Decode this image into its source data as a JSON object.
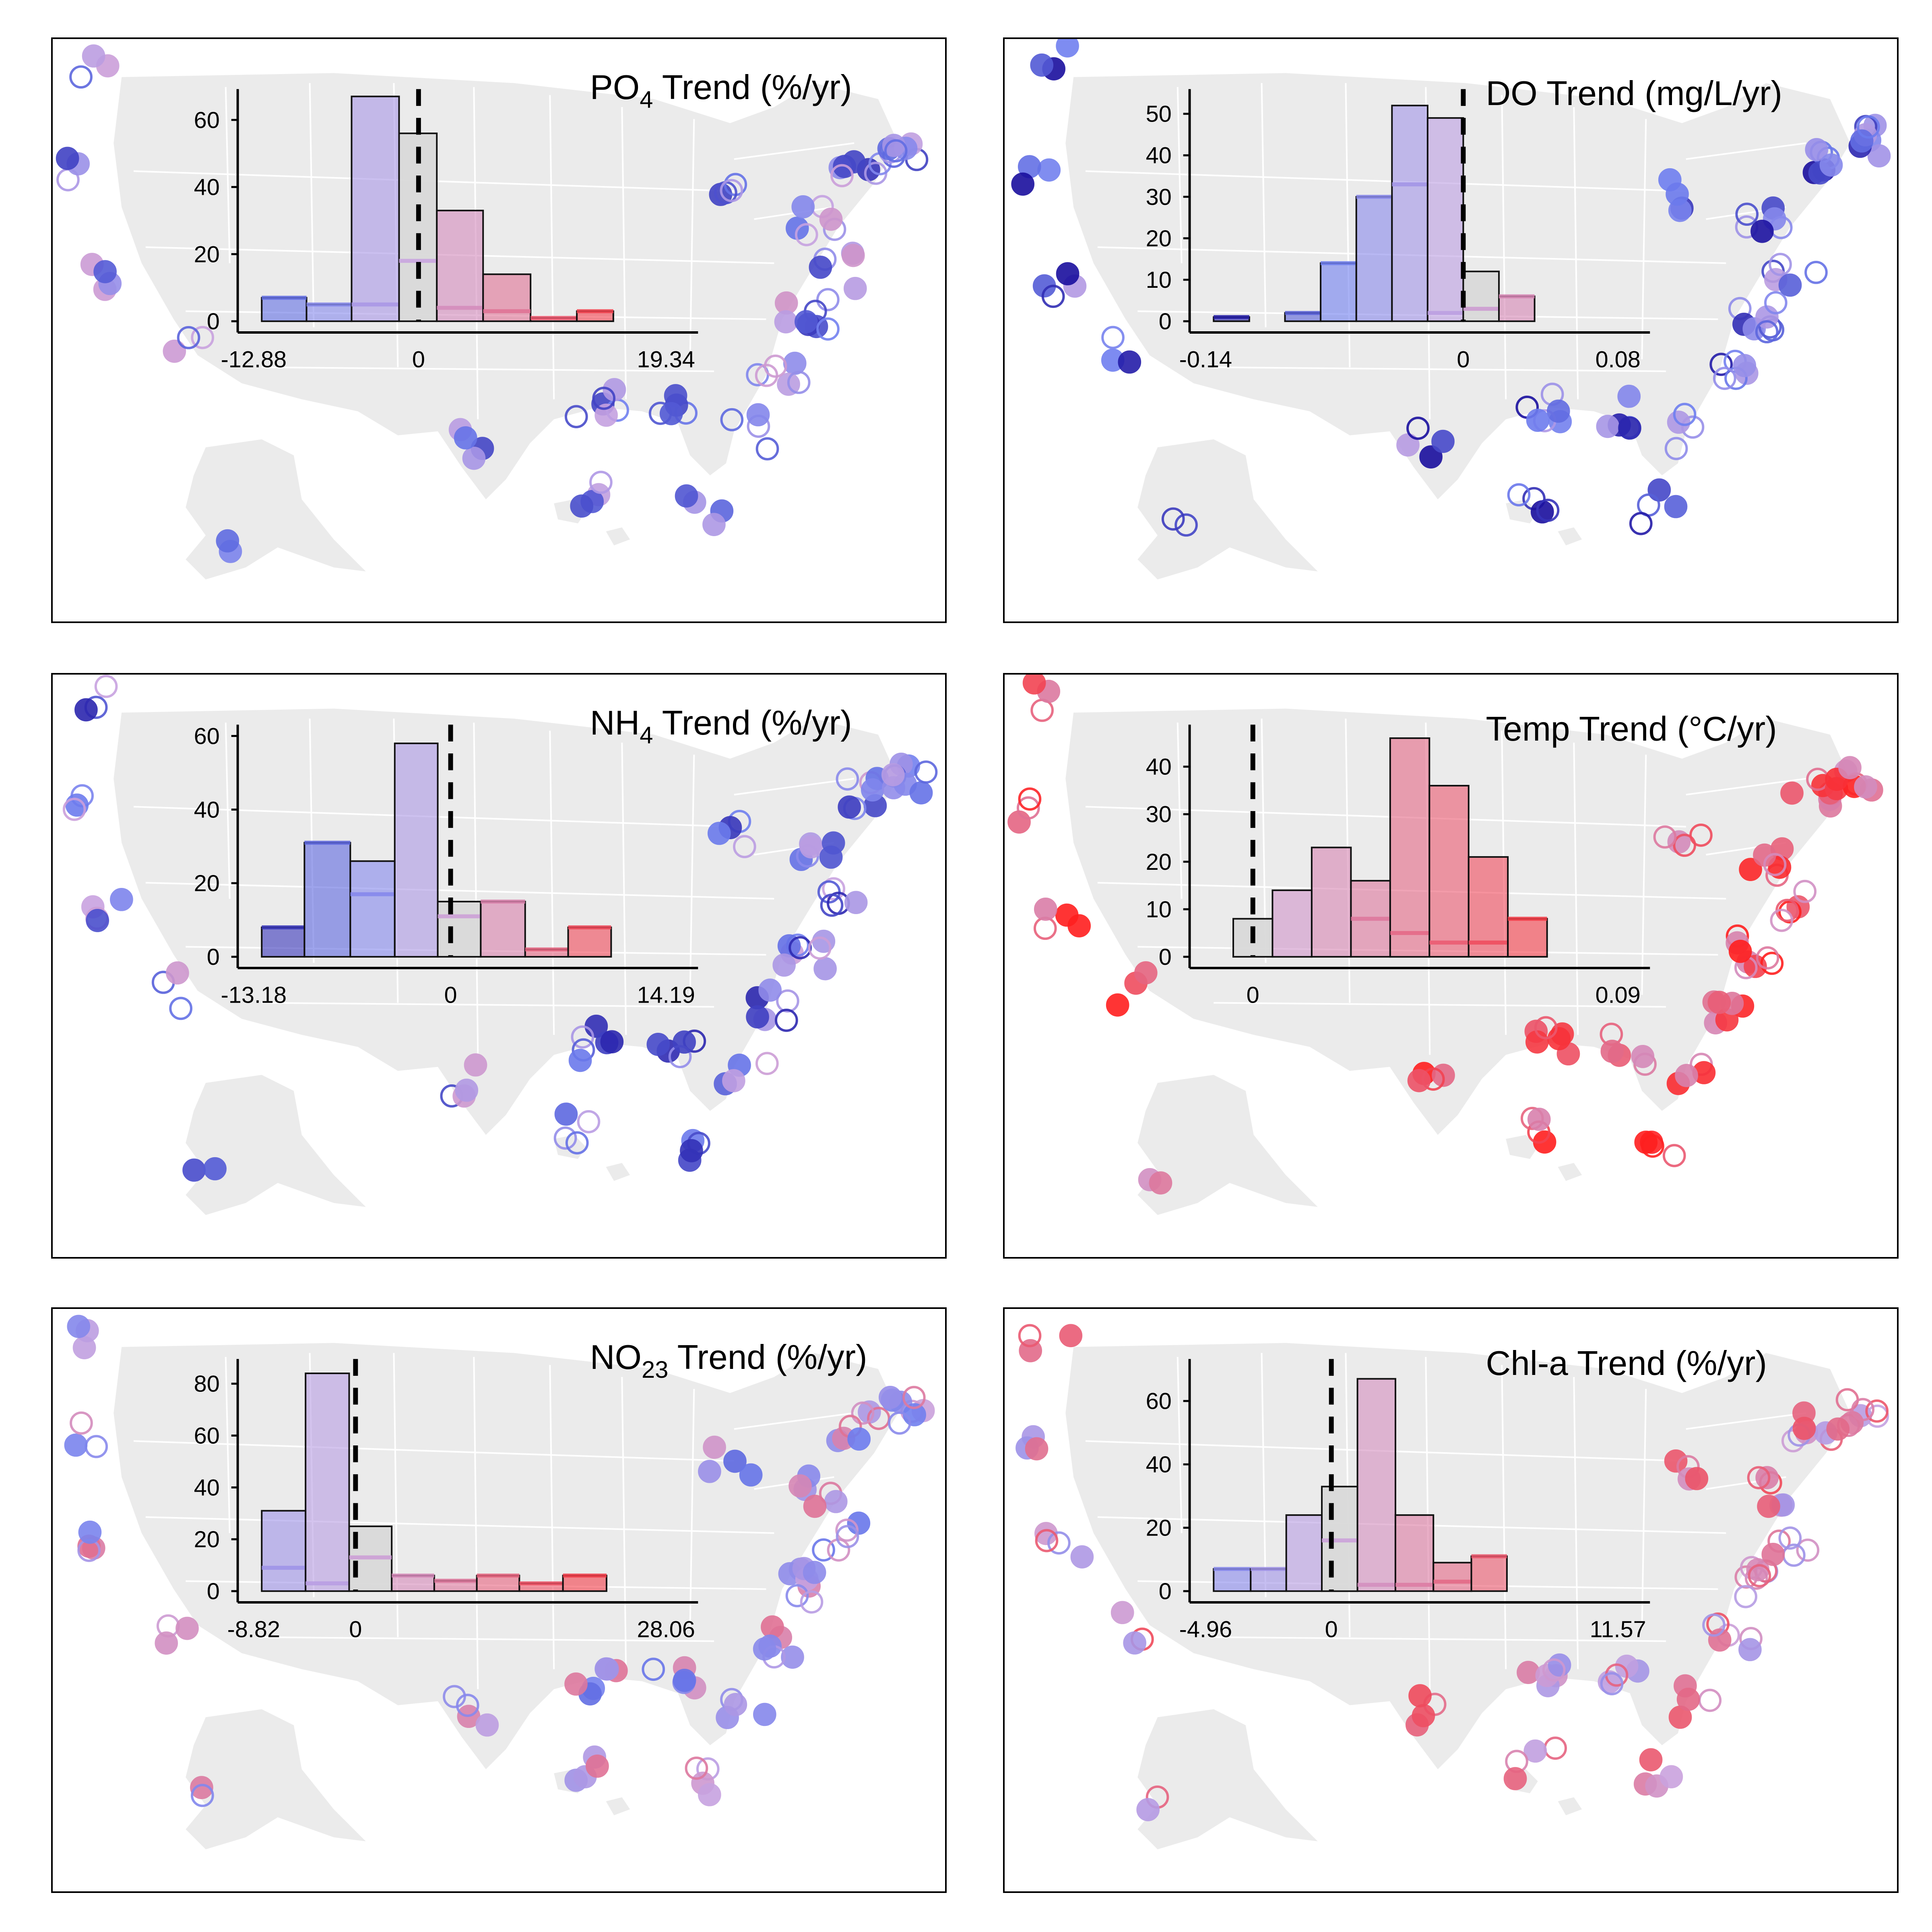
{
  "colors": {
    "negative_strong": "#1a0f9e",
    "negative": "#6f7ff0",
    "neutral": "#c9a3e0",
    "positive": "#e8607a",
    "positive_strong": "#ff1f1f",
    "map_fill": "#ebebeb",
    "neutral_bin": "#d9d9d9"
  },
  "chart_data": [
    {
      "type": "bar",
      "panel": "po4",
      "title": "PO4 Trend (%/yr)",
      "title_parts": {
        "base": "PO",
        "sub": "4",
        "rest": " Trend (%/yr)"
      },
      "tick_labels": [
        "-12.88",
        "0",
        "19.34"
      ],
      "xlim": [
        -12.88,
        19.34
      ],
      "ylim": [
        0,
        68
      ],
      "yticks": [
        0,
        20,
        40,
        60
      ],
      "bin_edges": [
        -12.88,
        -9.2,
        -5.5,
        -1.6,
        1.5,
        5.3,
        9.2,
        13.0,
        16.0,
        19.34
      ],
      "values": [
        7,
        5,
        67,
        56,
        33,
        14,
        1,
        3,
        0
      ],
      "significant": [
        7,
        5,
        5,
        18,
        4,
        3,
        1,
        3,
        0
      ],
      "zero": 0
    },
    {
      "type": "bar",
      "panel": "do",
      "title": "DO Trend (mg/L/yr)",
      "title_parts": {
        "base": "DO Trend (mg/L/yr)",
        "sub": "",
        "rest": ""
      },
      "tick_labels": [
        "-0.14",
        "0",
        "0.08"
      ],
      "xlim": [
        -0.14,
        0.08
      ],
      "ylim": [
        0,
        55
      ],
      "yticks": [
        0,
        10,
        20,
        30,
        40,
        50
      ],
      "bin_edges": [
        -0.14,
        -0.12,
        -0.1,
        -0.08,
        -0.06,
        -0.04,
        -0.02,
        0.0,
        0.02,
        0.04,
        0.06,
        0.08
      ],
      "values": [
        1,
        0,
        2,
        14,
        30,
        52,
        49,
        12,
        6,
        0,
        0
      ],
      "significant": [
        1,
        0,
        2,
        14,
        30,
        33,
        2,
        3,
        6,
        0,
        0
      ],
      "zero": 0
    },
    {
      "type": "bar",
      "panel": "nh4",
      "title": "NH4 Trend (%/yr)",
      "title_parts": {
        "base": "NH",
        "sub": "4",
        "rest": " Trend (%/yr)"
      },
      "tick_labels": [
        "-13.18",
        "0",
        "14.19"
      ],
      "xlim": [
        -13.18,
        14.19
      ],
      "ylim": [
        0,
        62
      ],
      "yticks": [
        0,
        20,
        40,
        60
      ],
      "bin_edges": [
        -13.18,
        -10.2,
        -7.0,
        -3.9,
        -0.9,
        2.1,
        5.2,
        8.2,
        11.2,
        14.19
      ],
      "values": [
        8,
        31,
        26,
        58,
        15,
        15,
        2,
        8,
        0
      ],
      "significant": [
        8,
        31,
        17,
        0,
        11,
        15,
        2,
        8,
        0
      ],
      "zero": 0
    },
    {
      "type": "bar",
      "panel": "temp",
      "title": "Temp Trend (°C/yr)",
      "title_parts": {
        "base": "Temp Trend (°C/yr)",
        "sub": "",
        "rest": ""
      },
      "tick_labels": [
        "0",
        "0.09"
      ],
      "xlim": [
        -0.01,
        0.09
      ],
      "ylim": [
        0,
        48
      ],
      "yticks": [
        0,
        10,
        20,
        30,
        40
      ],
      "bin_edges": [
        -0.005,
        0.005,
        0.015,
        0.025,
        0.035,
        0.045,
        0.055,
        0.065,
        0.075
      ],
      "values": [
        8,
        14,
        23,
        16,
        46,
        36,
        21,
        8
      ],
      "significant": [
        0,
        0,
        0,
        8,
        5,
        3,
        3,
        8
      ],
      "zero": 0
    },
    {
      "type": "bar",
      "panel": "no23",
      "title": "NO23 Trend (%/yr)",
      "title_parts": {
        "base": "NO",
        "sub": "23",
        "rest": " Trend (%/yr)"
      },
      "tick_labels": [
        "-8.82",
        "0",
        "28.06"
      ],
      "xlim": [
        -8.82,
        28.06
      ],
      "ylim": [
        0,
        88
      ],
      "yticks": [
        0,
        20,
        40,
        60,
        80
      ],
      "bin_edges": [
        -8.82,
        -4.7,
        -0.6,
        3.4,
        7.4,
        11.4,
        15.4,
        19.5,
        23.6,
        28.06
      ],
      "values": [
        31,
        84,
        25,
        6,
        4,
        6,
        3,
        6,
        0
      ],
      "significant": [
        9,
        3,
        13,
        6,
        4,
        6,
        3,
        6,
        0
      ],
      "zero": 0
    },
    {
      "type": "bar",
      "panel": "chla",
      "title": "Chl-a Trend (%/yr)",
      "title_parts": {
        "base": "Chl-a Trend (%/yr)",
        "sub": "",
        "rest": ""
      },
      "tick_labels": [
        "-4.96",
        "0",
        "11.57"
      ],
      "xlim": [
        -4.96,
        11.57
      ],
      "ylim": [
        0,
        72
      ],
      "yticks": [
        0,
        20,
        40,
        60
      ],
      "bin_edges": [
        -4.96,
        -3.4,
        -1.9,
        -0.4,
        1.1,
        2.7,
        4.3,
        5.9,
        7.4,
        8.9
      ],
      "values": [
        7,
        7,
        24,
        33,
        67,
        24,
        9,
        11,
        0
      ],
      "significant": [
        7,
        7,
        0,
        16,
        2,
        2,
        3,
        11,
        0
      ],
      "zero": 0
    }
  ]
}
